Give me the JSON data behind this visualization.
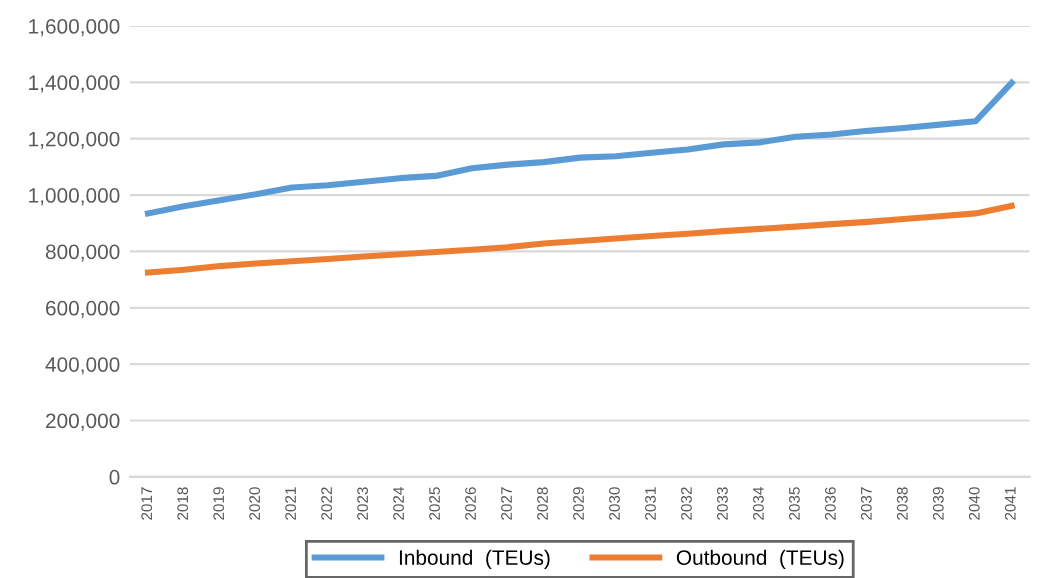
{
  "chart_data": {
    "type": "line",
    "categories": [
      "2017",
      "2018",
      "2019",
      "2020",
      "2021",
      "2022",
      "2023",
      "2024",
      "2025",
      "2026",
      "2027",
      "2028",
      "2029",
      "2030",
      "2031",
      "2032",
      "2033",
      "2034",
      "2035",
      "2036",
      "2037",
      "2038",
      "2039",
      "2040",
      "2041"
    ],
    "series": [
      {
        "name": "Inbound  (TEUs)",
        "color": "#5b9bd5",
        "values": [
          935000,
          960000,
          982000,
          1003000,
          1027000,
          1035000,
          1047000,
          1060000,
          1068000,
          1095000,
          1108000,
          1117000,
          1133000,
          1138000,
          1150000,
          1162000,
          1180000,
          1187000,
          1207000,
          1215000,
          1228000,
          1238000,
          1250000,
          1262000,
          1398000
        ]
      },
      {
        "name": "Outbound  (TEUs)",
        "color": "#ed7d31",
        "values": [
          725000,
          735000,
          748000,
          757000,
          765000,
          773000,
          782000,
          790000,
          798000,
          806000,
          815000,
          828000,
          837000,
          846000,
          855000,
          863000,
          872000,
          880000,
          888000,
          897000,
          905000,
          915000,
          925000,
          935000,
          962000
        ]
      }
    ],
    "ylim": [
      0,
      1600000
    ],
    "yticks": [
      {
        "value": 0,
        "label": "0"
      },
      {
        "value": 200000,
        "label": "200,000"
      },
      {
        "value": 400000,
        "label": "400,000"
      },
      {
        "value": 600000,
        "label": "600,000"
      },
      {
        "value": 800000,
        "label": "800,000"
      },
      {
        "value": 1000000,
        "label": "1,000,000"
      },
      {
        "value": 1200000,
        "label": "1,200,000"
      },
      {
        "value": 1400000,
        "label": "1,400,000"
      },
      {
        "value": 1600000,
        "label": "1,600,000"
      }
    ],
    "grid": "y",
    "legend": "bottom",
    "marker": "none",
    "line_style": "solid"
  }
}
